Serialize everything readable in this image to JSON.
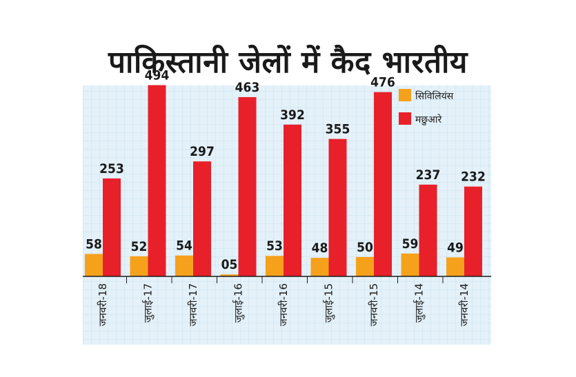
{
  "title": "पाकिस्तानी जेलों में कैद भारतीय",
  "chart_data": {
    "type": "bar",
    "title": "पाकिस्तानी जेलों में कैद भारतीय",
    "categories": [
      "जनवरी-18",
      "जुलाई-17",
      "जनवरी-17",
      "जुलाई-16",
      "जनवरी-16",
      "जुलाई-15",
      "जनवरी-15",
      "जुलाई-14",
      "जनवरी-14"
    ],
    "series": [
      {
        "name": "सिविलियंस",
        "color": "#f5a11c",
        "values": [
          58,
          52,
          54,
          5,
          53,
          48,
          50,
          59,
          49
        ],
        "labels": [
          "58",
          "52",
          "54",
          "05",
          "53",
          "48",
          "50",
          "59",
          "49"
        ]
      },
      {
        "name": "मछुआरे",
        "color": "#e8202a",
        "values": [
          253,
          494,
          297,
          463,
          392,
          355,
          476,
          237,
          232
        ],
        "labels": [
          "253",
          "494",
          "297",
          "463",
          "392",
          "355",
          "476",
          "237",
          "232"
        ]
      }
    ],
    "ylim": [
      0,
      520
    ],
    "legend": "top-right",
    "grid": true,
    "xlabel": "",
    "ylabel": ""
  }
}
